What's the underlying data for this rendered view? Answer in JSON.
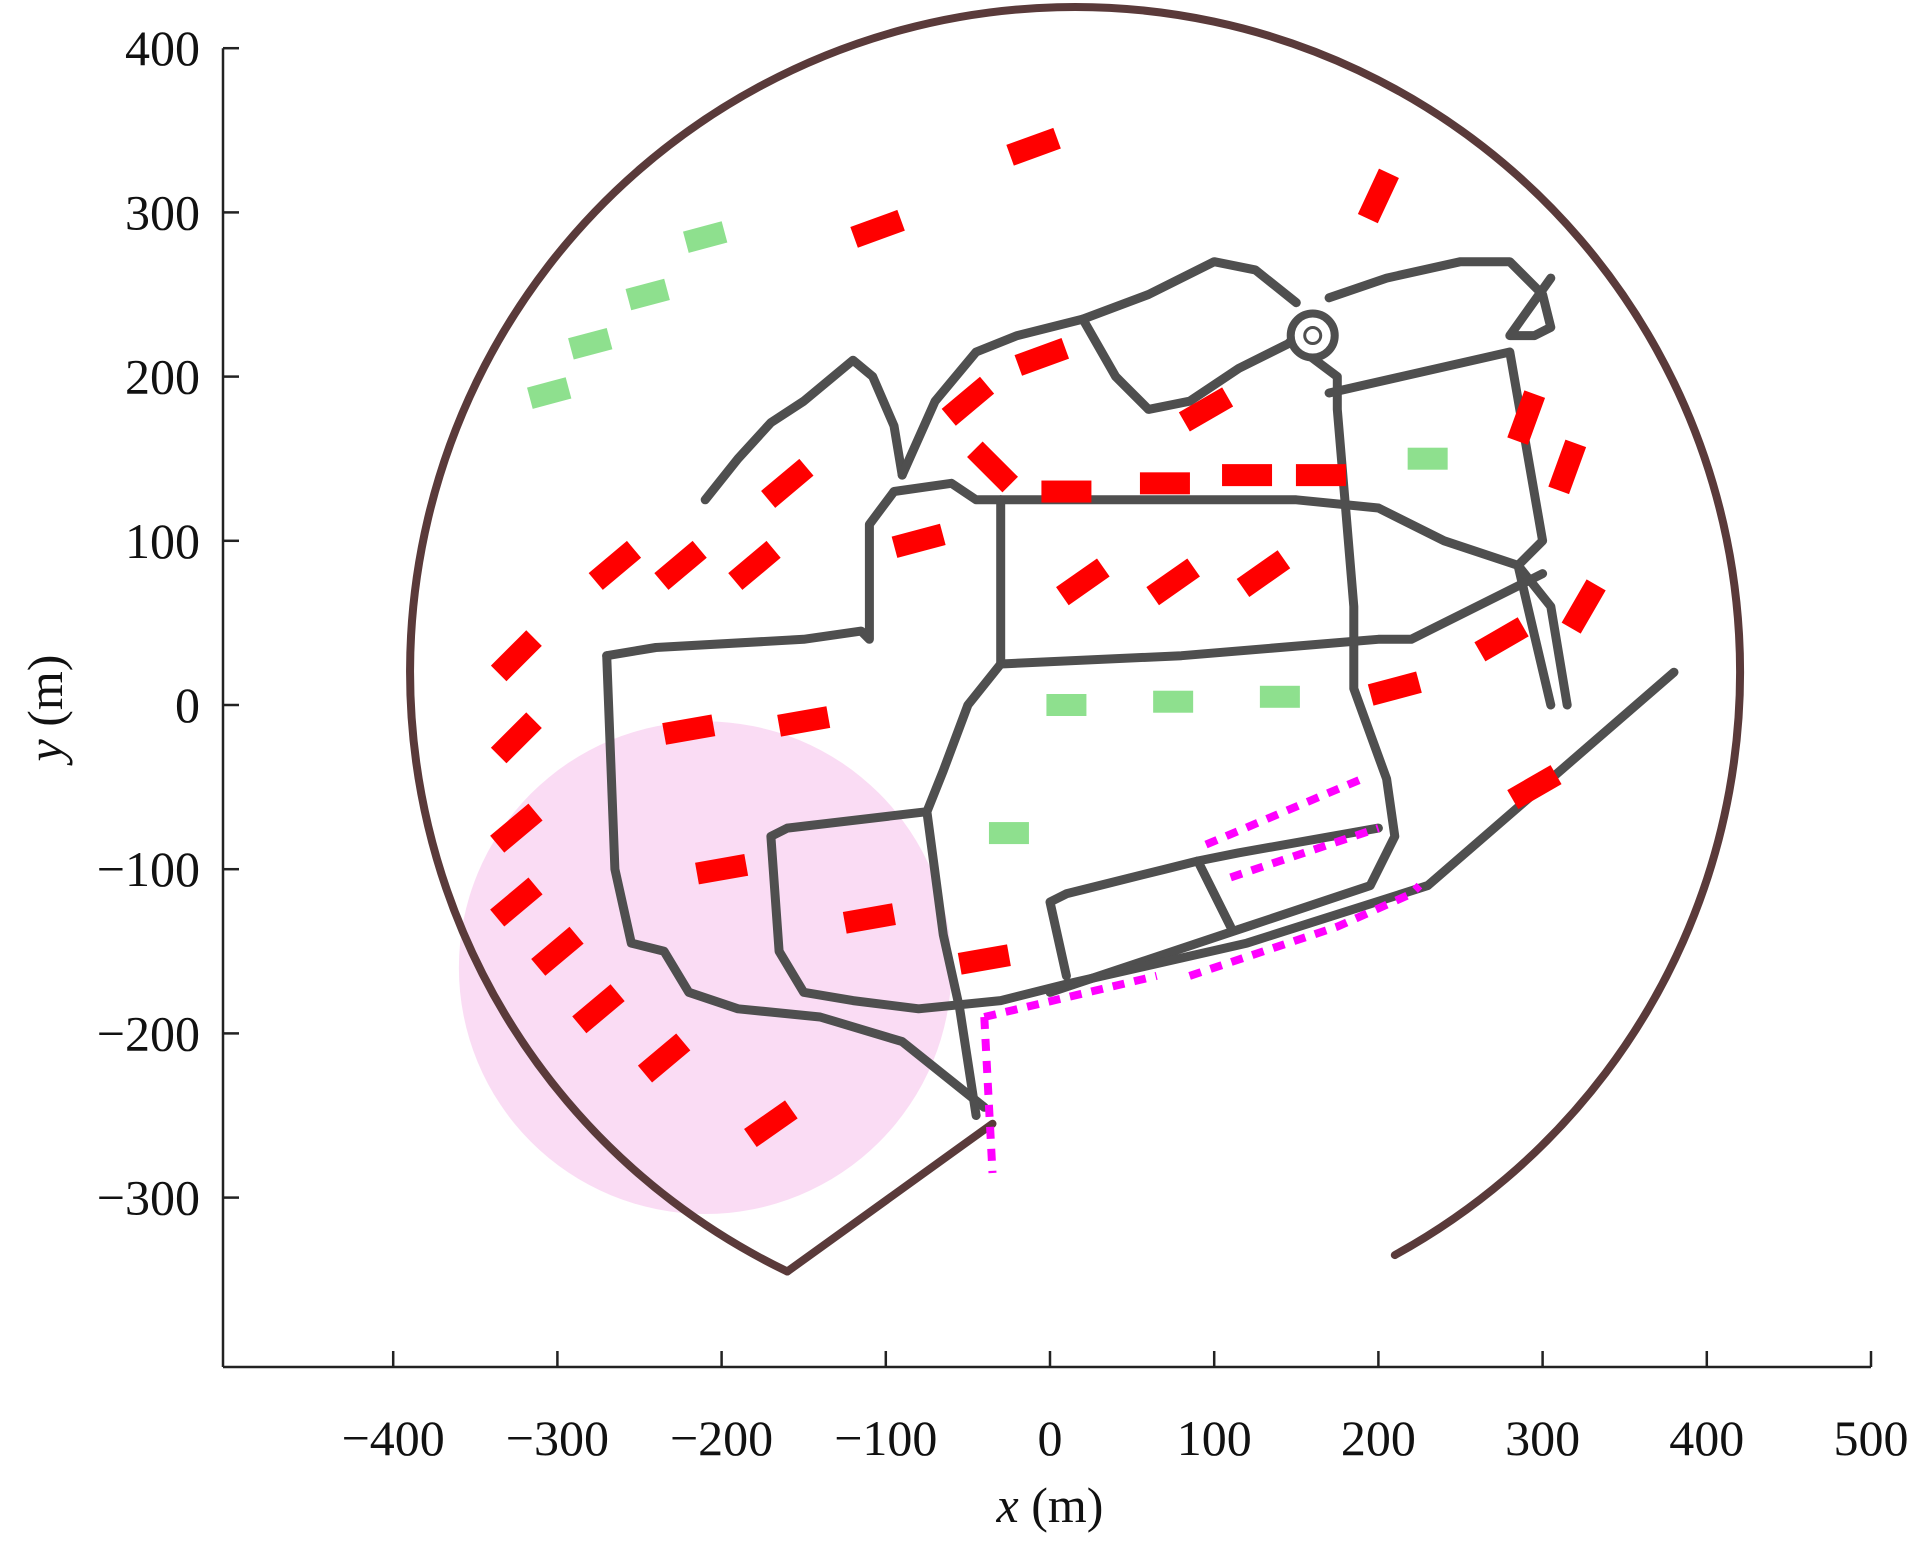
{
  "chart_data": {
    "type": "map",
    "xlabel_var": "x",
    "xlabel_unit": " (m)",
    "ylabel_var": "y",
    "ylabel_unit": " (m)",
    "xlim": [
      -500,
      500
    ],
    "ylim": [
      -400,
      400
    ],
    "x_ticks": [
      -400,
      -300,
      -200,
      -100,
      0,
      100,
      200,
      300,
      400,
      500
    ],
    "x_tick_labels": [
      "−400",
      "−300",
      "−200",
      "−100",
      "0",
      "100",
      "200",
      "300",
      "400",
      "500"
    ],
    "y_ticks": [
      400,
      300,
      200,
      100,
      0,
      -100,
      -200,
      -300
    ],
    "y_tick_labels": [
      "400",
      "300",
      "200",
      "100",
      "0",
      "−100",
      "−200",
      "−300"
    ],
    "colors": {
      "boundary": "#5a3a3a",
      "road": "#4f4f4f",
      "red_marker": "#ff0000",
      "green_marker": "#8ee08e",
      "magenta_dotted": "#ff00ff",
      "pink_zone": "#f9d6f2"
    },
    "zone": {
      "name": "pink-disc",
      "center": [
        -210,
        -160
      ],
      "radius": 150
    },
    "red_segments": [
      [
        -10,
        340,
        20
      ],
      [
        -105,
        290,
        20
      ],
      [
        200,
        310,
        65
      ],
      [
        -5,
        212,
        20
      ],
      [
        -50,
        185,
        40
      ],
      [
        -35,
        145,
        -45
      ],
      [
        -160,
        135,
        40
      ],
      [
        -265,
        85,
        40
      ],
      [
        -225,
        85,
        40
      ],
      [
        -180,
        85,
        40
      ],
      [
        -80,
        100,
        15
      ],
      [
        10,
        130,
        0
      ],
      [
        70,
        135,
        0
      ],
      [
        120,
        140,
        0
      ],
      [
        165,
        140,
        0
      ],
      [
        95,
        180,
        30
      ],
      [
        20,
        75,
        35
      ],
      [
        75,
        75,
        35
      ],
      [
        130,
        80,
        35
      ],
      [
        -325,
        30,
        45
      ],
      [
        -325,
        -20,
        45
      ],
      [
        -220,
        -15,
        10
      ],
      [
        -150,
        -10,
        10
      ],
      [
        -325,
        -75,
        40
      ],
      [
        -325,
        -120,
        40
      ],
      [
        -300,
        -150,
        40
      ],
      [
        -275,
        -185,
        40
      ],
      [
        -235,
        -215,
        40
      ],
      [
        -200,
        -100,
        10
      ],
      [
        -110,
        -130,
        10
      ],
      [
        -40,
        -155,
        10
      ],
      [
        210,
        10,
        15
      ],
      [
        275,
        40,
        30
      ],
      [
        325,
        60,
        60
      ],
      [
        315,
        145,
        70
      ],
      [
        290,
        175,
        70
      ],
      [
        295,
        -50,
        30
      ],
      [
        -170,
        -255,
        35
      ]
    ],
    "green_segments": [
      [
        -210,
        285,
        15
      ],
      [
        -245,
        250,
        15
      ],
      [
        -280,
        220,
        15
      ],
      [
        -305,
        190,
        15
      ],
      [
        230,
        150,
        0
      ],
      [
        10,
        0,
        0
      ],
      [
        75,
        2,
        0
      ],
      [
        140,
        5,
        0
      ],
      [
        -25,
        -78,
        0
      ]
    ],
    "magenta_paths": [
      [
        [
          95,
          -85
        ],
        [
          190,
          -45
        ]
      ],
      [
        [
          110,
          -105
        ],
        [
          200,
          -75
        ]
      ],
      [
        [
          85,
          -165
        ],
        [
          175,
          -135
        ],
        [
          220,
          -115
        ],
        [
          225,
          -110
        ]
      ],
      [
        [
          -40,
          -190
        ],
        [
          65,
          -165
        ]
      ],
      [
        [
          -40,
          -190
        ],
        [
          -35,
          -285
        ]
      ]
    ],
    "boundary_arc": {
      "center": [
        5,
        10
      ],
      "radius": 405,
      "start_point": [
        210,
        -335
      ],
      "end_point": [
        -160,
        -345
      ],
      "sweep": "counterclockwise-through-top"
    },
    "boundary_closing": [
      [
        -160,
        -345
      ],
      [
        -35,
        -255
      ]
    ],
    "roads": [
      [
        [
          -210,
          125
        ],
        [
          -190,
          150
        ],
        [
          -170,
          172
        ],
        [
          -150,
          185
        ],
        [
          -138,
          195
        ],
        [
          -120,
          210
        ],
        [
          -108,
          200
        ],
        [
          -95,
          170
        ],
        [
          -90,
          140
        ]
      ],
      [
        [
          -90,
          140
        ],
        [
          -70,
          185
        ],
        [
          -45,
          215
        ],
        [
          -20,
          225
        ],
        [
          20,
          235
        ],
        [
          60,
          250
        ],
        [
          100,
          270
        ],
        [
          125,
          265
        ],
        [
          150,
          245
        ]
      ],
      [
        [
          20,
          235
        ],
        [
          40,
          200
        ],
        [
          60,
          180
        ],
        [
          85,
          185
        ],
        [
          115,
          205
        ],
        [
          145,
          220
        ],
        [
          160,
          235
        ]
      ],
      [
        [
          170,
          248
        ],
        [
          205,
          260
        ],
        [
          250,
          270
        ],
        [
          280,
          270
        ],
        [
          300,
          250
        ],
        [
          305,
          230
        ],
        [
          295,
          225
        ],
        [
          280,
          225
        ],
        [
          305,
          260
        ]
      ],
      [
        [
          155,
          215
        ],
        [
          175,
          200
        ],
        [
          175,
          180
        ],
        [
          180,
          120
        ],
        [
          185,
          60
        ],
        [
          185,
          10
        ],
        [
          205,
          -45
        ],
        [
          210,
          -80
        ],
        [
          195,
          -110
        ],
        [
          120,
          -135
        ],
        [
          60,
          -155
        ],
        [
          0,
          -175
        ]
      ],
      [
        [
          170,
          190
        ],
        [
          280,
          215
        ],
        [
          300,
          100
        ],
        [
          285,
          85
        ],
        [
          305,
          0
        ]
      ],
      [
        [
          -30,
          125
        ],
        [
          30,
          125
        ],
        [
          150,
          125
        ],
        [
          200,
          120
        ],
        [
          240,
          100
        ],
        [
          285,
          85
        ],
        [
          305,
          60
        ],
        [
          315,
          0
        ]
      ],
      [
        [
          -30,
          125
        ],
        [
          -30,
          25
        ],
        [
          80,
          30
        ],
        [
          200,
          40
        ],
        [
          220,
          40
        ],
        [
          260,
          60
        ],
        [
          290,
          75
        ],
        [
          300,
          80
        ]
      ],
      [
        [
          -30,
          25
        ],
        [
          -50,
          0
        ],
        [
          -65,
          -40
        ],
        [
          -75,
          -65
        ]
      ],
      [
        [
          -270,
          30
        ],
        [
          -240,
          35
        ],
        [
          -150,
          40
        ],
        [
          -115,
          45
        ],
        [
          -110,
          40
        ],
        [
          -110,
          110
        ],
        [
          -95,
          130
        ],
        [
          -60,
          135
        ],
        [
          -45,
          125
        ],
        [
          -30,
          125
        ]
      ],
      [
        [
          -270,
          30
        ],
        [
          -265,
          -100
        ],
        [
          -255,
          -145
        ],
        [
          -235,
          -150
        ],
        [
          -220,
          -175
        ],
        [
          -190,
          -185
        ],
        [
          -140,
          -190
        ],
        [
          -90,
          -205
        ],
        [
          -40,
          -245
        ]
      ],
      [
        [
          -75,
          -65
        ],
        [
          -160,
          -75
        ],
        [
          -170,
          -80
        ],
        [
          -165,
          -150
        ],
        [
          -150,
          -175
        ],
        [
          -120,
          -180
        ],
        [
          -80,
          -185
        ],
        [
          -30,
          -180
        ],
        [
          10,
          -170
        ],
        [
          120,
          -145
        ],
        [
          230,
          -110
        ],
        [
          380,
          20
        ]
      ],
      [
        [
          -75,
          -65
        ],
        [
          -65,
          -140
        ],
        [
          -55,
          -185
        ],
        [
          -45,
          -250
        ]
      ],
      [
        [
          10,
          -165
        ],
        [
          0,
          -120
        ],
        [
          10,
          -115
        ],
        [
          70,
          -100
        ],
        [
          90,
          -95
        ],
        [
          115,
          -90
        ],
        [
          200,
          -75
        ]
      ],
      [
        [
          90,
          -95
        ],
        [
          110,
          -135
        ]
      ]
    ],
    "roundabout": [
      160,
      225
    ]
  }
}
